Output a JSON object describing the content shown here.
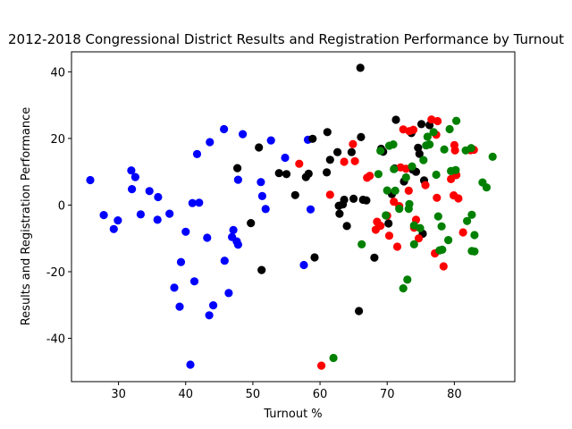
{
  "chart_data": {
    "type": "scatter",
    "title": "2012-2018 Congressional District Results and Registration Performance by Turnout",
    "xlabel": "Turnout %",
    "ylabel": "Results and Registration Performance",
    "xlim": [
      23,
      89
    ],
    "ylim": [
      -53,
      46
    ],
    "xticks": [
      30,
      40,
      50,
      60,
      70,
      80
    ],
    "yticks": [
      -40,
      -20,
      0,
      20,
      40
    ],
    "grid": false,
    "legend": "none",
    "series": [
      {
        "color": "#0000ff",
        "points": [
          [
            25.8,
            7.5
          ],
          [
            27.8,
            -3.0
          ],
          [
            29.3,
            -7.2
          ],
          [
            29.9,
            -4.6
          ],
          [
            31.9,
            10.4
          ],
          [
            32.0,
            4.8
          ],
          [
            32.5,
            8.4
          ],
          [
            33.3,
            -2.8
          ],
          [
            34.6,
            4.2
          ],
          [
            35.8,
            -4.4
          ],
          [
            35.9,
            2.4
          ],
          [
            37.6,
            -2.6
          ],
          [
            38.3,
            -24.8
          ],
          [
            39.1,
            -30.5
          ],
          [
            39.3,
            -17.1
          ],
          [
            40.0,
            -8.0
          ],
          [
            40.7,
            -47.9
          ],
          [
            41.0,
            0.6
          ],
          [
            41.3,
            -22.9
          ],
          [
            41.7,
            15.3
          ],
          [
            42.0,
            0.7
          ],
          [
            43.2,
            -9.8
          ],
          [
            43.5,
            -33.1
          ],
          [
            43.6,
            18.9
          ],
          [
            44.1,
            -30.1
          ],
          [
            45.7,
            22.8
          ],
          [
            45.8,
            -16.7
          ],
          [
            46.4,
            -26.4
          ],
          [
            46.9,
            -9.6
          ],
          [
            47.1,
            -7.5
          ],
          [
            47.6,
            -10.9
          ],
          [
            47.8,
            -11.9
          ],
          [
            47.8,
            7.6
          ],
          [
            48.5,
            21.3
          ],
          [
            51.2,
            6.9
          ],
          [
            51.4,
            2.7
          ],
          [
            51.9,
            -1.2
          ],
          [
            52.7,
            19.4
          ],
          [
            54.8,
            14.2
          ],
          [
            57.6,
            -18.0
          ],
          [
            58.2,
            19.6
          ],
          [
            58.6,
            -1.3
          ]
        ]
      },
      {
        "color": "#000000",
        "points": [
          [
            47.7,
            11.1
          ],
          [
            49.7,
            -5.4
          ],
          [
            50.9,
            17.3
          ],
          [
            51.3,
            -19.5
          ],
          [
            53.9,
            9.6
          ],
          [
            55.0,
            9.3
          ],
          [
            56.3,
            3.0
          ],
          [
            57.9,
            8.4
          ],
          [
            58.3,
            9.4
          ],
          [
            58.9,
            19.9
          ],
          [
            59.2,
            -15.7
          ],
          [
            61.0,
            9.8
          ],
          [
            61.1,
            21.9
          ],
          [
            61.5,
            13.6
          ],
          [
            62.6,
            15.9
          ],
          [
            62.8,
            -0.2
          ],
          [
            62.9,
            -2.6
          ],
          [
            63.4,
            0.2
          ],
          [
            63.6,
            1.6
          ],
          [
            64.0,
            -6.3
          ],
          [
            64.7,
            15.9
          ],
          [
            65.0,
            1.9
          ],
          [
            65.8,
            -31.8
          ],
          [
            66.0,
            41.2
          ],
          [
            66.1,
            20.4
          ],
          [
            66.4,
            1.6
          ],
          [
            66.9,
            1.4
          ],
          [
            68.1,
            -15.8
          ],
          [
            69.1,
            16.9
          ],
          [
            69.4,
            16.0
          ],
          [
            70.2,
            -5.5
          ],
          [
            70.7,
            3.3
          ],
          [
            71.1,
            11.0
          ],
          [
            71.3,
            25.6
          ],
          [
            72.5,
            7.1
          ],
          [
            73.6,
            21.6
          ],
          [
            73.8,
            10.6
          ],
          [
            74.3,
            10.0
          ],
          [
            74.6,
            17.2
          ],
          [
            74.8,
            15.4
          ],
          [
            75.1,
            24.3
          ],
          [
            75.3,
            -8.6
          ],
          [
            75.5,
            7.4
          ],
          [
            76.3,
            24.0
          ]
        ]
      },
      {
        "color": "#ff0000",
        "points": [
          [
            56.9,
            12.4
          ],
          [
            60.2,
            -48.2
          ],
          [
            61.5,
            3.1
          ],
          [
            63.6,
            13.0
          ],
          [
            64.9,
            18.3
          ],
          [
            65.2,
            13.2
          ],
          [
            67.0,
            8.2
          ],
          [
            67.4,
            8.8
          ],
          [
            68.3,
            -7.4
          ],
          [
            68.5,
            -5.0
          ],
          [
            69.0,
            -6.2
          ],
          [
            70.0,
            -3.2
          ],
          [
            70.3,
            -9.2
          ],
          [
            71.0,
            1.0
          ],
          [
            71.5,
            -12.5
          ],
          [
            71.8,
            -0.3
          ],
          [
            72.0,
            11.3
          ],
          [
            72.4,
            22.7
          ],
          [
            72.8,
            10.9
          ],
          [
            73.2,
            4.3
          ],
          [
            73.3,
            22.2
          ],
          [
            73.9,
            22.6
          ],
          [
            74.0,
            -6.8
          ],
          [
            74.3,
            -4.4
          ],
          [
            74.7,
            -10.0
          ],
          [
            75.7,
            6.0
          ],
          [
            76.6,
            25.7
          ],
          [
            77.1,
            -14.5
          ],
          [
            77.3,
            21.1
          ],
          [
            77.4,
            2.2
          ],
          [
            77.5,
            25.2
          ],
          [
            78.4,
            -18.4
          ],
          [
            79.5,
            7.8
          ],
          [
            79.9,
            2.9
          ],
          [
            80.0,
            18.0
          ],
          [
            80.1,
            16.4
          ],
          [
            80.3,
            9.0
          ],
          [
            80.6,
            2.0
          ],
          [
            81.3,
            -8.2
          ],
          [
            82.4,
            16.5
          ],
          [
            82.9,
            16.6
          ]
        ]
      },
      {
        "color": "#008000",
        "points": [
          [
            62.0,
            -45.9
          ],
          [
            66.2,
            -11.8
          ],
          [
            68.7,
            9.3
          ],
          [
            69.0,
            16.3
          ],
          [
            69.8,
            -3.1
          ],
          [
            70.0,
            4.4
          ],
          [
            70.3,
            17.8
          ],
          [
            70.9,
            18.2
          ],
          [
            71.0,
            10.8
          ],
          [
            71.2,
            4.3
          ],
          [
            71.8,
            -1.1
          ],
          [
            72.4,
            -25.0
          ],
          [
            72.8,
            8.3
          ],
          [
            73.0,
            -22.4
          ],
          [
            73.2,
            -1.1
          ],
          [
            73.3,
            0.3
          ],
          [
            73.7,
            11.6
          ],
          [
            74.0,
            -6.1
          ],
          [
            74.0,
            -11.8
          ],
          [
            74.9,
            -6.9
          ],
          [
            75.4,
            13.5
          ],
          [
            75.8,
            17.9
          ],
          [
            76.0,
            20.5
          ],
          [
            76.3,
            18.2
          ],
          [
            76.9,
            21.9
          ],
          [
            77.3,
            9.1
          ],
          [
            77.6,
            -3.4
          ],
          [
            77.8,
            -13.6
          ],
          [
            78.1,
            -6.4
          ],
          [
            78.2,
            -13.4
          ],
          [
            78.5,
            16.7
          ],
          [
            79.1,
            -10.5
          ],
          [
            79.3,
            22.8
          ],
          [
            79.5,
            10.2
          ],
          [
            80.2,
            10.5
          ],
          [
            80.3,
            25.3
          ],
          [
            81.7,
            16.4
          ],
          [
            81.9,
            -4.8
          ],
          [
            82.5,
            17.1
          ],
          [
            82.6,
            -13.8
          ],
          [
            82.6,
            -2.9
          ],
          [
            83.0,
            -13.9
          ],
          [
            83.0,
            -9.0
          ],
          [
            84.2,
            6.8
          ],
          [
            84.8,
            5.3
          ],
          [
            85.7,
            14.5
          ]
        ]
      }
    ]
  }
}
